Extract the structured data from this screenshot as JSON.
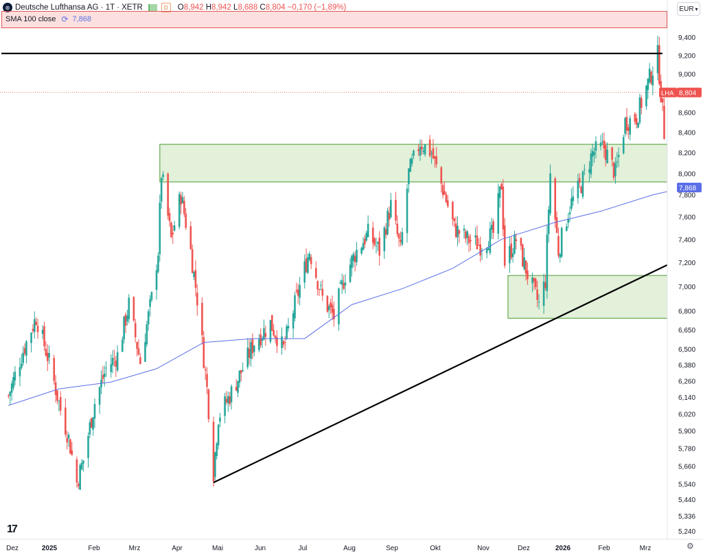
{
  "header": {
    "title": "Deutsche Lufthansa AG · 1T · XETR",
    "logo_text": "⊛",
    "d_badge": "D",
    "ohlc": {
      "o_label": "O",
      "o": "8,942",
      "h_label": "H",
      "h": "8,942",
      "l_label": "L",
      "l": "8,688",
      "c_label": "C",
      "c": "8,804",
      "change": "−0,170 (−1,89%)"
    },
    "indicator_label": "SMA 100 close",
    "indicator_value": "7,868",
    "currency": "EUR"
  },
  "colors": {
    "up": "#26a69a",
    "down": "#ef5350",
    "sma": "#5b6ee8",
    "zone_fill": "#e3f0da",
    "zone_stroke": "#6fb05b",
    "line": "#000000"
  },
  "chart_data": {
    "type": "candlestick",
    "ticker_label": "LHA",
    "last_price": "8,804",
    "sma_label_value": "7,868",
    "x_labels": [
      "Dez",
      "2025",
      "Feb",
      "Mrz",
      "Apr",
      "Mai",
      "Jun",
      "Jul",
      "Aug",
      "Sep",
      "Okt",
      "Nov",
      "Dez",
      "2026",
      "Feb",
      "Mrz"
    ],
    "y_ticks": [
      "9,400",
      "9,200",
      "9,000",
      "8,800",
      "8,600",
      "8,400",
      "8,200",
      "8,000",
      "7,800",
      "7,600",
      "7,400",
      "7,200",
      "7,000",
      "6,800",
      "6,650",
      "6,500",
      "6,380",
      "6,260",
      "6,140",
      "6,020",
      "5,900",
      "5,780",
      "5,660",
      "5,540",
      "5,440",
      "5,336",
      "5,240"
    ],
    "ylim": [
      5.19,
      9.5
    ],
    "scale": "log",
    "close_path": [
      [
        "2024-12-02",
        6.15
      ],
      [
        "2024-12-10",
        6.45
      ],
      [
        "2024-12-19",
        6.75
      ],
      [
        "2024-12-27",
        6.4
      ],
      [
        "2025-01-03",
        6.05
      ],
      [
        "2025-01-08",
        5.85
      ],
      [
        "2025-01-13",
        5.55
      ],
      [
        "2025-01-17",
        5.7
      ],
      [
        "2025-01-24",
        6.1
      ],
      [
        "2025-01-31",
        6.35
      ],
      [
        "2025-02-07",
        6.45
      ],
      [
        "2025-02-14",
        6.85
      ],
      [
        "2025-02-21",
        6.4
      ],
      [
        "2025-02-28",
        6.9
      ],
      [
        "2025-03-04",
        7.3
      ],
      [
        "2025-03-06",
        8.0
      ],
      [
        "2025-03-12",
        7.4
      ],
      [
        "2025-03-18",
        7.8
      ],
      [
        "2025-03-24",
        7.3
      ],
      [
        "2025-03-28",
        6.9
      ],
      [
        "2025-04-03",
        6.2
      ],
      [
        "2025-04-07",
        5.62
      ],
      [
        "2025-04-10",
        6.0
      ],
      [
        "2025-04-17",
        6.15
      ],
      [
        "2025-04-25",
        6.35
      ],
      [
        "2025-05-02",
        6.55
      ],
      [
        "2025-05-12",
        6.7
      ],
      [
        "2025-05-20",
        6.5
      ],
      [
        "2025-05-28",
        6.9
      ],
      [
        "2025-06-05",
        7.3
      ],
      [
        "2025-06-13",
        6.9
      ],
      [
        "2025-06-20",
        6.75
      ],
      [
        "2025-06-27",
        7.1
      ],
      [
        "2025-07-04",
        7.3
      ],
      [
        "2025-07-11",
        7.45
      ],
      [
        "2025-07-18",
        7.3
      ],
      [
        "2025-07-25",
        7.7
      ],
      [
        "2025-07-31",
        7.3
      ],
      [
        "2025-08-05",
        8.0
      ],
      [
        "2025-08-12",
        8.3
      ],
      [
        "2025-08-19",
        8.2
      ],
      [
        "2025-08-26",
        7.85
      ],
      [
        "2025-09-02",
        7.5
      ],
      [
        "2025-09-10",
        7.4
      ],
      [
        "2025-09-18",
        7.35
      ],
      [
        "2025-09-26",
        7.45
      ],
      [
        "2025-10-01",
        7.9
      ],
      [
        "2025-10-03",
        7.2
      ],
      [
        "2025-10-10",
        7.4
      ],
      [
        "2025-10-17",
        7.1
      ],
      [
        "2025-10-24",
        6.85
      ],
      [
        "2025-10-28",
        7.05
      ],
      [
        "2025-10-31",
        8.0
      ],
      [
        "2025-11-05",
        7.3
      ],
      [
        "2025-11-12",
        7.7
      ],
      [
        "2025-11-19",
        7.9
      ],
      [
        "2025-11-26",
        8.2
      ],
      [
        "2025-12-03",
        8.25
      ],
      [
        "2025-12-10",
        8.0
      ],
      [
        "2025-12-16",
        8.5
      ],
      [
        "2025-12-23",
        8.55
      ],
      [
        "2025-12-30",
        8.9
      ],
      [
        "2026-01-05",
        9.2
      ],
      [
        "2026-01-09",
        8.4
      ],
      [
        "2026-01-14",
        8.3
      ],
      [
        "2026-01-19",
        8.75
      ],
      [
        "2026-01-22",
        8.8
      ]
    ],
    "sma_path": [
      [
        "2024-12-02",
        6.08
      ],
      [
        "2025-01-02",
        6.2
      ],
      [
        "2025-02-03",
        6.25
      ],
      [
        "2025-03-03",
        6.35
      ],
      [
        "2025-04-01",
        6.55
      ],
      [
        "2025-05-01",
        6.58
      ],
      [
        "2025-06-02",
        6.58
      ],
      [
        "2025-07-01",
        6.85
      ],
      [
        "2025-08-01",
        6.98
      ],
      [
        "2025-09-01",
        7.15
      ],
      [
        "2025-10-01",
        7.4
      ],
      [
        "2025-11-03",
        7.55
      ],
      [
        "2025-12-01",
        7.65
      ],
      [
        "2026-01-02",
        7.8
      ],
      [
        "2026-01-22",
        7.868
      ]
    ],
    "resistance_line": {
      "y": 9.22,
      "x_range": [
        "2024-12-01",
        "2026-03-25"
      ]
    },
    "trend_line": [
      [
        "2025-04-07",
        5.55
      ],
      [
        "2026-03-25",
        7.68
      ]
    ],
    "zones": [
      {
        "x_range": [
          "2025-03-05",
          "2026-03-20"
        ],
        "y_range": [
          7.92,
          8.28
        ]
      },
      {
        "x_range": [
          "2025-10-05",
          "2026-03-20"
        ],
        "y_range": [
          6.74,
          7.09
        ]
      }
    ],
    "legend_position": "top-left"
  }
}
